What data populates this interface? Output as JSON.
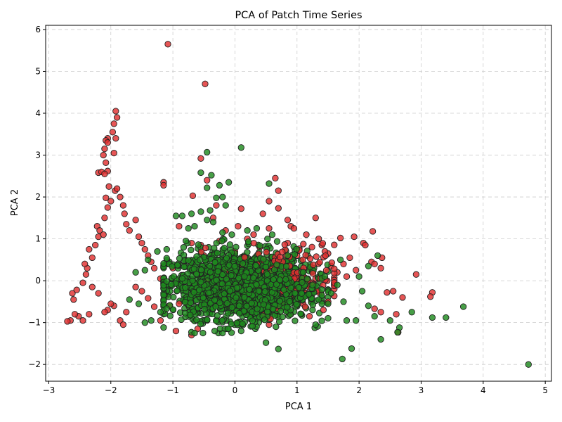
{
  "chart_data": {
    "type": "scatter",
    "title": "PCA of Patch Time Series",
    "xlabel": "PCA 1",
    "ylabel": "PCA 2",
    "xlim": [
      -3.05,
      5.1
    ],
    "ylim": [
      -2.4,
      6.1
    ],
    "xticks": [
      -3,
      -2,
      -1,
      0,
      1,
      2,
      3,
      4,
      5
    ],
    "yticks": [
      -2,
      -1,
      0,
      1,
      2,
      3,
      4,
      5,
      6
    ],
    "grid": true,
    "legend": "none",
    "colors": {
      "red": "#e03030",
      "green": "#1f8a1f",
      "edge": "#222222",
      "grid": "#cccccc"
    },
    "series": [
      {
        "color": "red",
        "points": [
          [
            -1.08,
            5.65
          ],
          [
            -0.48,
            4.7
          ],
          [
            -1.92,
            4.05
          ],
          [
            -1.9,
            3.9
          ],
          [
            -1.95,
            3.75
          ],
          [
            -1.97,
            3.55
          ],
          [
            -1.92,
            3.4
          ],
          [
            -2.05,
            3.4
          ],
          [
            -2.08,
            3.35
          ],
          [
            -2.05,
            3.3
          ],
          [
            -2.1,
            3.15
          ],
          [
            -2.12,
            3.0
          ],
          [
            -1.95,
            3.05
          ],
          [
            -2.08,
            2.82
          ],
          [
            -2.05,
            2.62
          ],
          [
            -2.2,
            2.58
          ],
          [
            -2.15,
            2.6
          ],
          [
            -2.1,
            2.55
          ],
          [
            -2.03,
            2.25
          ],
          [
            -2.08,
            1.98
          ],
          [
            -1.15,
            2.35
          ],
          [
            -1.15,
            2.28
          ],
          [
            -0.55,
            2.92
          ],
          [
            -0.45,
            2.4
          ],
          [
            -0.68,
            2.03
          ],
          [
            0.65,
            2.45
          ],
          [
            0.7,
            2.15
          ],
          [
            0.55,
            1.9
          ],
          [
            0.7,
            1.73
          ],
          [
            0.1,
            1.72
          ],
          [
            0.45,
            1.6
          ],
          [
            -0.3,
            1.8
          ],
          [
            -0.35,
            1.5
          ],
          [
            0.05,
            1.3
          ],
          [
            0.85,
            1.45
          ],
          [
            0.9,
            1.3
          ],
          [
            1.3,
            1.5
          ],
          [
            1.7,
            1.02
          ],
          [
            1.92,
            1.05
          ],
          [
            2.07,
            0.9
          ],
          [
            2.1,
            0.85
          ],
          [
            2.2,
            0.45
          ],
          [
            2.25,
            0.4
          ],
          [
            2.37,
            0.55
          ],
          [
            2.35,
            0.3
          ],
          [
            2.22,
            1.18
          ],
          [
            2.45,
            -0.28
          ],
          [
            2.55,
            -0.25
          ],
          [
            2.6,
            -0.8
          ],
          [
            2.7,
            -0.4
          ],
          [
            2.92,
            0.15
          ],
          [
            3.18,
            -0.28
          ],
          [
            3.15,
            -0.38
          ],
          [
            2.35,
            -0.75
          ],
          [
            2.25,
            -0.67
          ],
          [
            2.63,
            -1.23
          ],
          [
            0.9,
            -0.8
          ],
          [
            0.3,
            -0.7
          ],
          [
            -0.4,
            -0.65
          ],
          [
            -1.2,
            -0.95
          ],
          [
            -1.3,
            -0.62
          ],
          [
            -1.4,
            -0.42
          ],
          [
            -1.5,
            -0.25
          ],
          [
            -1.6,
            -0.15
          ],
          [
            -1.75,
            -0.75
          ],
          [
            -1.85,
            -0.95
          ],
          [
            -1.8,
            -1.05
          ],
          [
            -1.95,
            -0.6
          ],
          [
            -2.0,
            -0.55
          ],
          [
            -2.05,
            -0.7
          ],
          [
            -2.1,
            -0.75
          ],
          [
            -2.2,
            -0.3
          ],
          [
            -2.3,
            -0.15
          ],
          [
            -2.35,
            -0.8
          ],
          [
            -2.45,
            -0.95
          ],
          [
            -2.52,
            -0.85
          ],
          [
            -2.58,
            -0.8
          ],
          [
            -2.6,
            -0.45
          ],
          [
            -2.65,
            -0.95
          ],
          [
            -2.7,
            -0.97
          ],
          [
            -2.62,
            -0.3
          ],
          [
            -2.55,
            -0.22
          ],
          [
            -2.45,
            -0.05
          ],
          [
            -2.4,
            0.15
          ],
          [
            -2.38,
            0.3
          ],
          [
            -2.42,
            0.4
          ],
          [
            -2.3,
            0.55
          ],
          [
            -2.35,
            0.75
          ],
          [
            -2.25,
            0.85
          ],
          [
            -2.2,
            1.05
          ],
          [
            -2.22,
            1.3
          ],
          [
            -2.18,
            1.2
          ],
          [
            -2.12,
            1.1
          ],
          [
            -2.1,
            1.5
          ],
          [
            -2.05,
            1.75
          ],
          [
            -2.0,
            1.9
          ],
          [
            -1.93,
            2.15
          ],
          [
            -1.9,
            2.2
          ],
          [
            -1.85,
            2.0
          ],
          [
            -1.8,
            1.8
          ],
          [
            -1.78,
            1.6
          ],
          [
            -1.75,
            1.35
          ],
          [
            -1.7,
            1.2
          ],
          [
            -1.6,
            1.45
          ],
          [
            -1.55,
            1.05
          ],
          [
            -1.5,
            0.9
          ],
          [
            -1.45,
            0.75
          ],
          [
            -1.4,
            0.6
          ],
          [
            -1.35,
            0.45
          ],
          [
            -1.3,
            0.3
          ],
          [
            -0.9,
            1.3
          ],
          [
            -0.7,
            0.9
          ],
          [
            -0.5,
            0.6
          ],
          [
            -0.1,
            -0.3
          ],
          [
            0.2,
            0.4
          ],
          [
            0.6,
            0.2
          ],
          [
            1.0,
            0.6
          ],
          [
            1.2,
            0.3
          ],
          [
            1.5,
            0.65
          ],
          [
            1.75,
            0.4
          ],
          [
            1.95,
            0.25
          ],
          [
            1.6,
            -0.2
          ],
          [
            1.4,
            0.85
          ],
          [
            1.1,
            -0.55
          ],
          [
            0.75,
            -0.15
          ],
          [
            0.4,
            0.8
          ],
          [
            -0.25,
            0.95
          ],
          [
            -0.8,
            -0.2
          ],
          [
            -1.05,
            -0.6
          ],
          [
            -0.6,
            -1.15
          ],
          [
            0.05,
            -1.0
          ],
          [
            0.55,
            -1.05
          ],
          [
            1.2,
            -0.85
          ],
          [
            -0.95,
            -1.2
          ],
          [
            -0.7,
            -1.3
          ],
          [
            1.05,
            0.1
          ],
          [
            0.85,
            0.9
          ],
          [
            0.3,
            1.1
          ],
          [
            -0.05,
            0.15
          ],
          [
            -0.4,
            -0.2
          ],
          [
            0.15,
            -0.5
          ],
          [
            0.7,
            -0.45
          ],
          [
            1.3,
            0.05
          ],
          [
            1.55,
            0.35
          ],
          [
            1.85,
            0.55
          ],
          [
            -0.35,
            0.35
          ],
          [
            -0.65,
            0.2
          ],
          [
            -1.0,
            0.3
          ],
          [
            -1.2,
            0.05
          ],
          [
            -1.1,
            -0.35
          ],
          [
            0.95,
            1.25
          ],
          [
            1.15,
            1.1
          ],
          [
            0.55,
            1.25
          ],
          [
            0.2,
            1.0
          ],
          [
            -0.15,
            1.2
          ],
          [
            1.35,
            1.0
          ],
          [
            1.45,
            0.7
          ],
          [
            1.65,
            0.2
          ],
          [
            1.8,
            0.1
          ],
          [
            0.0,
            0.7
          ],
          [
            0.45,
            0.45
          ],
          [
            -0.55,
            0.85
          ],
          [
            -0.8,
            0.5
          ]
        ]
      },
      {
        "color": "green",
        "points": [
          [
            0.1,
            3.18
          ],
          [
            -0.45,
            3.07
          ],
          [
            -0.55,
            2.58
          ],
          [
            -0.38,
            2.52
          ],
          [
            -0.1,
            2.35
          ],
          [
            0.55,
            2.32
          ],
          [
            -0.25,
            2.28
          ],
          [
            -0.45,
            2.22
          ],
          [
            -0.3,
            1.98
          ],
          [
            -0.2,
            2.0
          ],
          [
            -0.15,
            1.8
          ],
          [
            -0.4,
            1.68
          ],
          [
            -0.55,
            1.65
          ],
          [
            -0.7,
            1.6
          ],
          [
            -0.95,
            1.55
          ],
          [
            -0.85,
            1.55
          ],
          [
            -0.45,
            1.45
          ],
          [
            -0.35,
            1.4
          ],
          [
            -0.65,
            1.3
          ],
          [
            -0.75,
            1.25
          ],
          [
            -0.2,
            1.15
          ],
          [
            0.2,
            1.2
          ],
          [
            0.6,
            1.1
          ],
          [
            4.73,
            -2.0
          ],
          [
            3.68,
            -0.62
          ],
          [
            3.4,
            -0.88
          ],
          [
            3.18,
            -0.88
          ],
          [
            2.85,
            -0.75
          ],
          [
            2.65,
            -1.12
          ],
          [
            2.62,
            -1.23
          ],
          [
            2.35,
            -1.4
          ],
          [
            1.88,
            -1.62
          ],
          [
            1.73,
            -1.87
          ],
          [
            0.7,
            -1.63
          ],
          [
            0.5,
            -1.48
          ],
          [
            2.5,
            -0.95
          ],
          [
            2.3,
            0.6
          ],
          [
            2.15,
            0.35
          ],
          [
            2.0,
            0.1
          ],
          [
            2.05,
            -0.25
          ],
          [
            2.15,
            -0.6
          ],
          [
            2.25,
            -0.85
          ],
          [
            1.95,
            -0.95
          ],
          [
            1.75,
            -0.5
          ],
          [
            1.8,
            -0.95
          ],
          [
            1.5,
            -0.55
          ],
          [
            1.3,
            -1.05
          ],
          [
            1.35,
            -0.45
          ],
          [
            1.25,
            -0.7
          ],
          [
            -0.05,
            1.1
          ],
          [
            0.35,
            1.25
          ],
          [
            0.85,
            0.6
          ],
          [
            1.1,
            0.2
          ],
          [
            1.25,
            -0.1
          ],
          [
            1.45,
            0.1
          ],
          [
            1.55,
            -0.3
          ],
          [
            1.7,
            0.5
          ],
          [
            1.65,
            -0.1
          ],
          [
            -1.45,
            -1.0
          ],
          [
            -1.7,
            -0.45
          ],
          [
            -1.6,
            0.2
          ],
          [
            -1.4,
            0.5
          ],
          [
            -1.25,
            0.7
          ],
          [
            -1.1,
            0.75
          ],
          [
            -1.2,
            -0.75
          ],
          [
            -1.35,
            -0.95
          ],
          [
            -1.55,
            -0.55
          ],
          [
            -1.45,
            0.25
          ]
        ]
      }
    ],
    "dense_clusters": [
      {
        "color": "green",
        "center": [
          0.05,
          -0.1
        ],
        "spread": [
          0.55,
          0.4
        ],
        "count": 1500,
        "xrange": [
          -1.15,
          1.5
        ],
        "yrange": [
          -1.25,
          1.0
        ]
      },
      {
        "color": "red",
        "center": [
          0.75,
          0.05
        ],
        "spread": [
          0.5,
          0.4
        ],
        "count": 160,
        "xrange": [
          -0.9,
          1.6
        ],
        "yrange": [
          -1.1,
          0.95
        ]
      },
      {
        "color": "green",
        "center": [
          0.2,
          -0.2
        ],
        "spread": [
          0.5,
          0.35
        ],
        "count": 600,
        "xrange": [
          -1.1,
          1.4
        ],
        "yrange": [
          -1.2,
          0.95
        ]
      }
    ]
  }
}
